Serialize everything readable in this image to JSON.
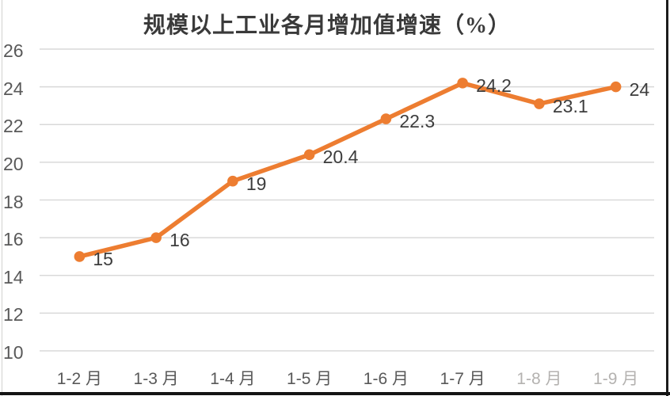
{
  "window": {
    "background": "#FFFFFF"
  },
  "chart_data": {
    "type": "line",
    "title": "规模以上工业各月增加值增速（%）",
    "categories": [
      "1-2 月",
      "1-3 月",
      "1-4 月",
      "1-5 月",
      "1-6 月",
      "1-7 月",
      "1-8 月",
      "1-9 月"
    ],
    "values": [
      15,
      16,
      19,
      20.4,
      22.3,
      24.2,
      23.1,
      24
    ],
    "data_labels": [
      "15",
      "16",
      "19",
      "20.4",
      "22.3",
      "24.2",
      "23.1",
      "24"
    ],
    "xlabel": "",
    "ylabel": "",
    "ylim": [
      10,
      26
    ],
    "yticks": [
      26,
      24,
      22,
      20,
      18,
      16,
      14,
      12,
      10
    ],
    "grid": true,
    "legend": false,
    "legend_position": "none",
    "line_color": "#ED7D31",
    "marker": "circle",
    "marker_color": "#ED7D31",
    "gridline_color": "#D9D9D9",
    "axis_label_color": "#595959",
    "data_label_color": "#3D3D3D",
    "faded_category_indexes": [
      6,
      7
    ]
  }
}
